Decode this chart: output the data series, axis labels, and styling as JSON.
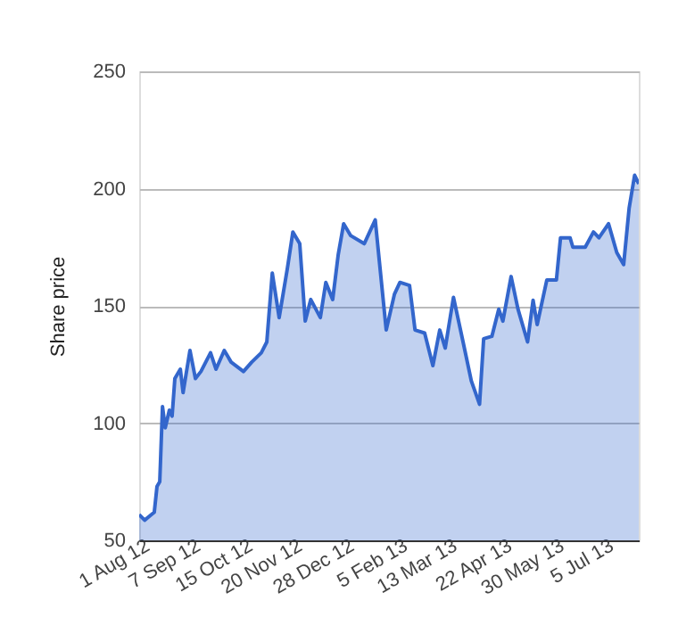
{
  "chart_data": {
    "type": "area",
    "ylabel": "Share price",
    "x": [
      "2012-07-26",
      "2012-07-30",
      "2012-08-04",
      "2012-08-06",
      "2012-08-08",
      "2012-08-10",
      "2012-08-12",
      "2012-08-14",
      "2012-08-17",
      "2012-08-19",
      "2012-08-21",
      "2012-08-25",
      "2012-08-27",
      "2012-09-01",
      "2012-09-05",
      "2012-09-09",
      "2012-09-16",
      "2012-09-20",
      "2012-09-26",
      "2012-10-01",
      "2012-10-10",
      "2012-10-16",
      "2012-10-23",
      "2012-10-27",
      "2012-10-31",
      "2012-11-05",
      "2012-11-11",
      "2012-11-15",
      "2012-11-20",
      "2012-11-24",
      "2012-11-28",
      "2012-12-05",
      "2012-12-09",
      "2012-12-14",
      "2012-12-18",
      "2012-12-22",
      "2012-12-27",
      "2013-01-06",
      "2013-01-14",
      "2013-01-17",
      "2013-01-22",
      "2013-01-28",
      "2013-02-01",
      "2013-02-08",
      "2013-02-12",
      "2013-02-19",
      "2013-02-25",
      "2013-03-02",
      "2013-03-06",
      "2013-03-12",
      "2013-03-19",
      "2013-03-25",
      "2013-03-31",
      "2013-04-03",
      "2013-04-09",
      "2013-04-14",
      "2013-04-17",
      "2013-04-23",
      "2013-04-28",
      "2013-05-05",
      "2013-05-09",
      "2013-05-12",
      "2013-05-19",
      "2013-05-26",
      "2013-05-29",
      "2013-06-05",
      "2013-06-07",
      "2013-06-16",
      "2013-06-22",
      "2013-06-26",
      "2013-07-03",
      "2013-07-09",
      "2013-07-14",
      "2013-07-18",
      "2013-07-22",
      "2013-07-25"
    ],
    "series": [
      {
        "color": "#3366cc",
        "values": [
          61,
          58.6,
          61,
          62,
          73,
          75,
          107,
          98,
          105.5,
          103,
          119,
          123,
          113,
          131,
          119,
          122,
          130,
          123,
          131,
          126,
          122,
          126,
          130,
          134.6,
          164,
          145,
          166,
          181.5,
          176.5,
          143.5,
          152.7,
          145,
          160,
          152.7,
          171.7,
          185,
          180,
          176.5,
          186.7,
          169,
          139.7,
          155,
          160,
          158.7,
          139.7,
          138.4,
          124.5,
          139.7,
          132,
          153.6,
          134.6,
          118,
          108,
          136,
          137,
          148.6,
          143.5,
          162.5,
          148.6,
          134.6,
          152.4,
          142,
          161,
          161,
          179,
          179,
          175,
          175,
          181.5,
          179,
          185,
          172.7,
          167.6,
          191.7,
          205.7,
          202
        ]
      }
    ],
    "xlim": [
      "2012-07-26",
      "2013-07-25"
    ],
    "xticks": [
      {
        "value": "2012-08-01",
        "label": "1 Aug 12"
      },
      {
        "value": "2012-09-07",
        "label": "7 Sep 12"
      },
      {
        "value": "2012-10-15",
        "label": "15 Oct 12"
      },
      {
        "value": "2012-11-20",
        "label": "20 Nov 12"
      },
      {
        "value": "2012-12-28",
        "label": "28 Dec 12"
      },
      {
        "value": "2013-02-05",
        "label": "5 Feb 13"
      },
      {
        "value": "2013-03-13",
        "label": "13 Mar 13"
      },
      {
        "value": "2013-04-22",
        "label": "22 Apr 13"
      },
      {
        "value": "2013-05-30",
        "label": "30 May 13"
      },
      {
        "value": "2013-07-05",
        "label": "5 Jul 13"
      }
    ],
    "ylim": [
      50,
      250
    ],
    "yticks": [
      50,
      100,
      150,
      200,
      250
    ],
    "grid": "y"
  }
}
